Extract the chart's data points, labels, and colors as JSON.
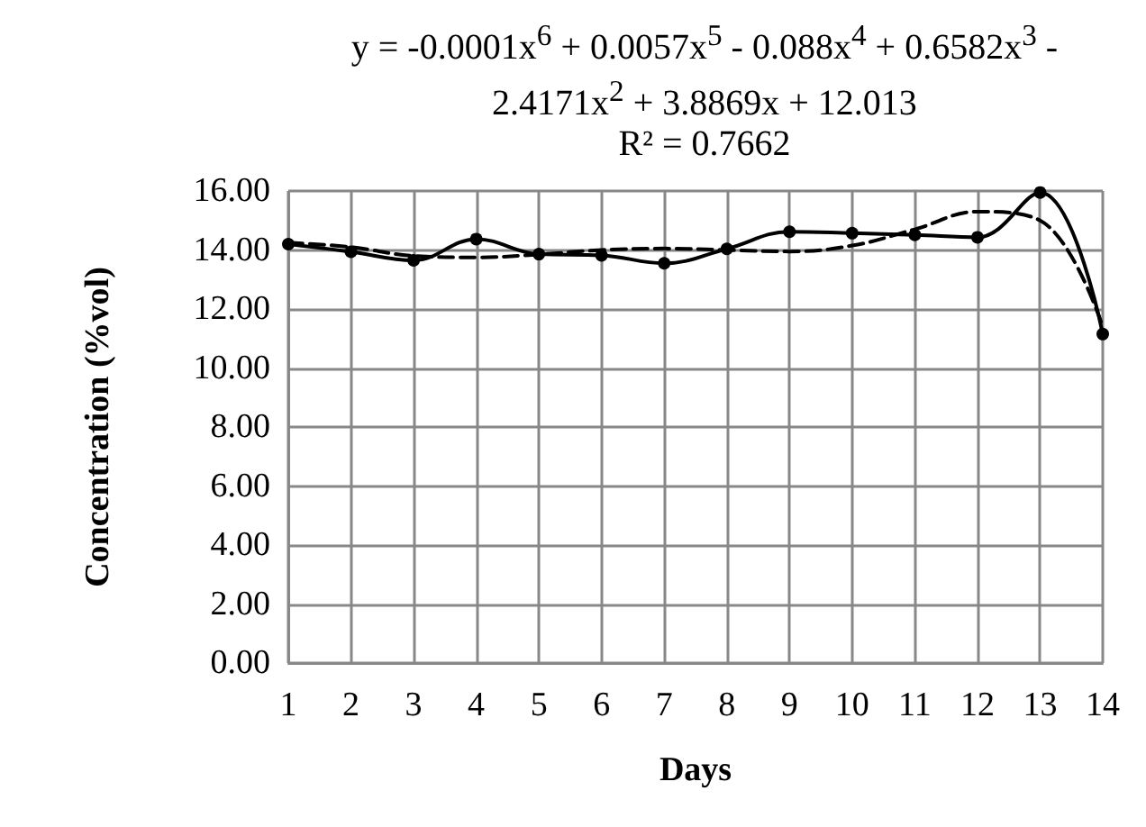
{
  "chart_data": {
    "type": "line",
    "xlabel": "Days",
    "ylabel": "Concentration (%vol)",
    "annotations": [
      "y = -0.0001x$^{6}$ + 0.0057x$^{5}$ - 0.088x$^{4}$ + 0.6582x$^{3}$ - 2.4171x$^{2}$ + 3.8869x + 12.013",
      "R² = 0.7662"
    ],
    "x": [
      1,
      2,
      3,
      4,
      5,
      6,
      7,
      8,
      9,
      10,
      11,
      12,
      13,
      14
    ],
    "series": [
      {
        "color": "#000000",
        "marker": "circle",
        "line_style": "solid",
        "values": [
          14.2,
          13.94,
          13.65,
          14.37,
          13.86,
          13.82,
          13.55,
          14.04,
          14.62,
          14.57,
          14.51,
          14.43,
          15.95,
          11.15
        ]
      },
      {
        "color": "#000000",
        "marker": "none",
        "line_style": "dashed",
        "values": [
          14.25,
          14.1,
          13.8,
          13.75,
          13.85,
          14.0,
          14.05,
          14.0,
          13.95,
          14.15,
          14.7,
          15.3,
          15.0,
          11.4
        ]
      }
    ],
    "xlim": [
      1,
      14
    ],
    "xticks": [
      1,
      2,
      3,
      4,
      5,
      6,
      7,
      8,
      9,
      10,
      11,
      12,
      13,
      14
    ],
    "ylim": [
      0,
      16
    ],
    "yticks": [
      {
        "value": 0,
        "label": "0.00"
      },
      {
        "value": 2,
        "label": "2.00"
      },
      {
        "value": 4,
        "label": "4.00"
      },
      {
        "value": 6,
        "label": "6.00"
      },
      {
        "value": 8,
        "label": "8.00"
      },
      {
        "value": 10,
        "label": "10.00"
      },
      {
        "value": 12,
        "label": "12.00"
      },
      {
        "value": 14,
        "label": "14.00"
      },
      {
        "value": 16,
        "label": "16.00"
      }
    ],
    "grid": true
  }
}
